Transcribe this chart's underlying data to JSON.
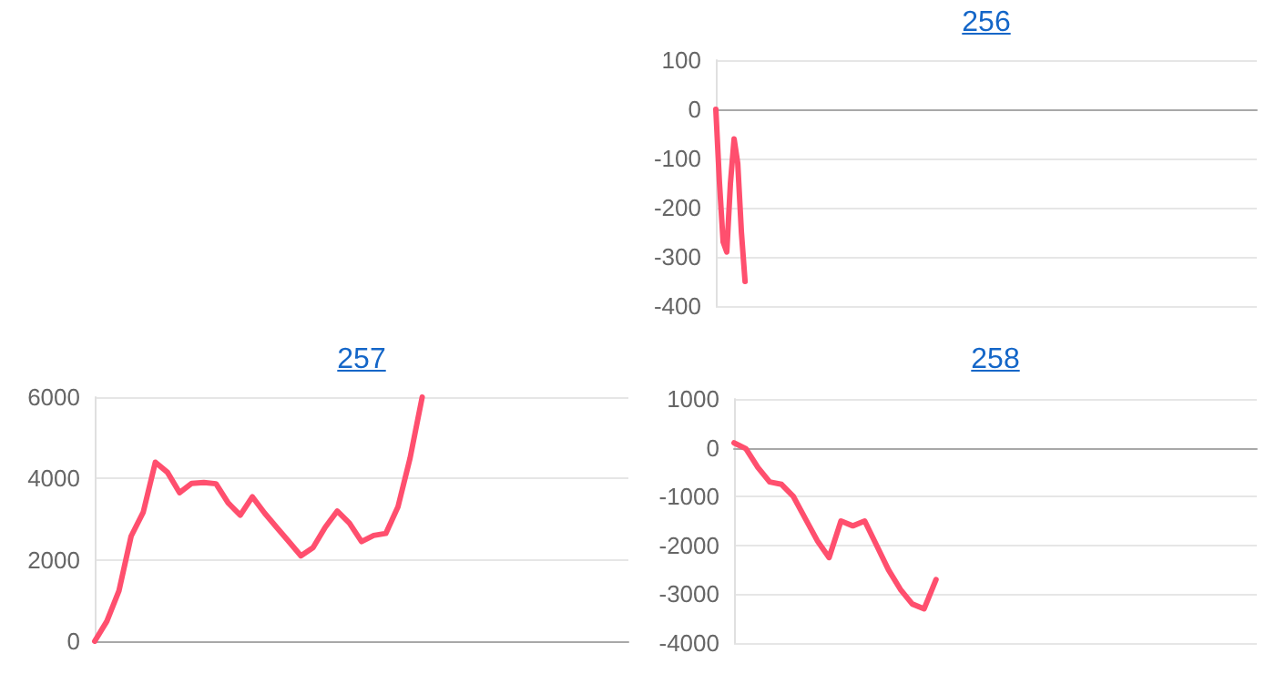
{
  "chart_data": [
    {
      "type": "line",
      "title": "256",
      "color": "#ff4f6e",
      "grid": "y",
      "tick_labels": "y",
      "ylim": [
        -400,
        100
      ],
      "yticks": [
        -400,
        -300,
        -200,
        -100,
        0,
        100
      ],
      "categories": [
        null,
        null,
        null,
        null,
        null,
        null,
        null,
        null,
        null,
        null,
        null,
        null,
        null,
        null,
        null,
        null,
        null,
        null,
        null,
        null,
        null,
        null,
        null,
        null,
        null,
        null,
        null,
        null,
        null,
        null,
        null,
        null,
        null,
        null,
        null,
        null,
        null,
        null,
        null,
        null,
        null,
        null,
        null,
        null,
        null,
        null,
        null,
        null,
        null,
        null,
        null,
        null,
        null,
        null,
        null,
        null,
        null,
        null,
        null,
        null,
        null,
        null,
        null,
        null,
        null,
        null,
        null,
        null,
        null,
        null,
        null,
        null,
        null,
        null,
        null,
        null,
        null,
        null,
        null,
        null,
        null,
        null,
        null,
        null,
        null,
        null,
        null,
        null,
        null,
        null,
        null,
        null,
        null,
        null,
        null,
        null,
        null,
        null,
        null,
        null,
        null,
        null,
        null,
        null,
        null,
        null,
        null,
        null,
        null,
        null,
        null,
        null,
        null,
        null,
        null,
        null,
        null,
        null,
        null,
        null,
        null,
        null,
        null,
        null,
        null,
        null,
        null,
        null,
        null,
        null,
        null,
        null,
        null,
        null,
        null,
        null,
        null,
        null,
        null,
        null,
        null,
        null,
        null,
        null,
        null,
        null,
        null,
        null,
        null
      ],
      "values": [
        0,
        -150,
        -270,
        -290,
        -150,
        -60,
        -110,
        -250,
        -350,
        null,
        null,
        null,
        null,
        null,
        null,
        null,
        null,
        null,
        null,
        null,
        null,
        null,
        null,
        null,
        null,
        null,
        null,
        null,
        null,
        null,
        null,
        null,
        null,
        null,
        null,
        null,
        null,
        null,
        null,
        null,
        null,
        null,
        null,
        null,
        null,
        null,
        null,
        null,
        null,
        null,
        null,
        null,
        null,
        null,
        null,
        null,
        null,
        null,
        null,
        null,
        null,
        null,
        null,
        null,
        null,
        null,
        null,
        null,
        null,
        null,
        null,
        null,
        null,
        null,
        null,
        null,
        null,
        null,
        null,
        null,
        null,
        null,
        null,
        null,
        null,
        null,
        null,
        null,
        null,
        null,
        null,
        null,
        null,
        null,
        null,
        null,
        null,
        null,
        null,
        null,
        null,
        null,
        null,
        null,
        null,
        null,
        null,
        null,
        null,
        null,
        null,
        null,
        null,
        null,
        null,
        null,
        null,
        null,
        null,
        null,
        null,
        null,
        null,
        null,
        null,
        null,
        null,
        null,
        null,
        null,
        null,
        null,
        null,
        null,
        null,
        null,
        null,
        null,
        null,
        null,
        null,
        null,
        null,
        null,
        null,
        null,
        null,
        null,
        null
      ]
    },
    {
      "type": "line",
      "title": "257",
      "color": "#ff4f6e",
      "grid": "y",
      "tick_labels": "y",
      "ylim": [
        0,
        6000
      ],
      "yticks": [
        0,
        2000,
        4000,
        6000
      ],
      "categories": [
        null,
        null,
        null,
        null,
        null,
        null,
        null,
        null,
        null,
        null,
        null,
        null,
        null,
        null,
        null,
        null,
        null,
        null,
        null,
        null,
        null,
        null,
        null,
        null,
        null,
        null,
        null,
        null,
        null,
        null,
        null,
        null,
        null,
        null,
        null,
        null,
        null,
        null,
        null,
        null,
        null,
        null,
        null,
        null,
        null
      ],
      "values": [
        0,
        490,
        1240,
        2580,
        3170,
        4400,
        4150,
        3650,
        3880,
        3900,
        3870,
        3400,
        3100,
        3550,
        3150,
        2800,
        2450,
        2100,
        2300,
        2800,
        3200,
        2900,
        2450,
        2600,
        2650,
        3300,
        4500,
        6000,
        null,
        null,
        null,
        null,
        null,
        null,
        null,
        null,
        null,
        null,
        null,
        null,
        null,
        null,
        null,
        null,
        null
      ]
    },
    {
      "type": "line",
      "title": "258",
      "color": "#ff4f6e",
      "grid": "y",
      "tick_labels": "y",
      "ylim": [
        -4000,
        1000
      ],
      "yticks": [
        -4000,
        -3000,
        -2000,
        -1000,
        0,
        1000
      ],
      "categories": [
        null,
        null,
        null,
        null,
        null,
        null,
        null,
        null,
        null,
        null,
        null,
        null,
        null,
        null,
        null,
        null,
        null,
        null,
        null,
        null,
        null,
        null,
        null,
        null,
        null,
        null,
        null,
        null,
        null,
        null,
        null,
        null,
        null,
        null,
        null,
        null,
        null,
        null,
        null,
        null,
        null,
        null,
        null,
        null,
        null
      ],
      "values": [
        100,
        -20,
        -400,
        -700,
        -750,
        -1000,
        -1450,
        -1900,
        -2250,
        -1500,
        -1600,
        -1500,
        -2000,
        -2500,
        -2900,
        -3200,
        -3300,
        -2700,
        null,
        null,
        null,
        null,
        null,
        null,
        null,
        null,
        null,
        null,
        null,
        null,
        null,
        null,
        null,
        null,
        null,
        null,
        null,
        null,
        null,
        null,
        null,
        null,
        null,
        null,
        null
      ]
    }
  ]
}
